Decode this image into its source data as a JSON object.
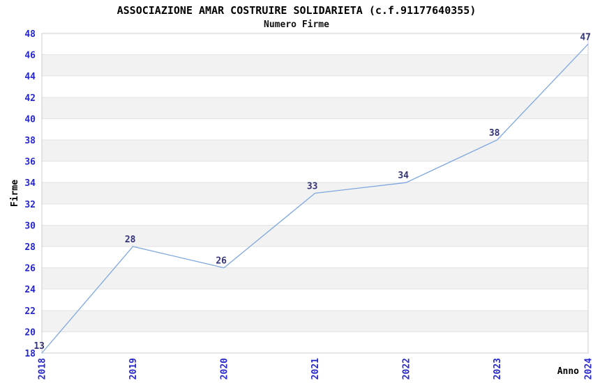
{
  "chart_data": {
    "type": "line",
    "title": "ASSOCIAZIONE AMAR COSTRUIRE SOLIDARIETA (c.f.91177640355)",
    "subtitle": "Numero Firme",
    "xlabel": "Anno",
    "ylabel": "Firme",
    "categories": [
      "2018",
      "2019",
      "2020",
      "2021",
      "2022",
      "2023",
      "2024"
    ],
    "values": [
      13,
      28,
      26,
      33,
      34,
      38,
      47
    ],
    "data_labels": [
      "13",
      "28",
      "26",
      "33",
      "34",
      "38",
      "47"
    ],
    "ylim": [
      18,
      48
    ],
    "ytick_step": 2,
    "ytick_labels": [
      "18",
      "20",
      "22",
      "24",
      "26",
      "28",
      "30",
      "32",
      "34",
      "36",
      "38",
      "40",
      "42",
      "44",
      "46",
      "48"
    ],
    "grid": "horizontal gridlines with alternating shaded bands",
    "legend": "none",
    "note": "first point (13) is below axis minimum and is clipped at the bottom edge",
    "colors": {
      "line": "#7da7e0",
      "axis_tick_label": "#2626cd",
      "data_label": "#333377",
      "band_fill": "#f2f2f2",
      "gridline": "#e3e3e3",
      "plot_border": "#cccccc",
      "title_text": "#000000"
    }
  }
}
